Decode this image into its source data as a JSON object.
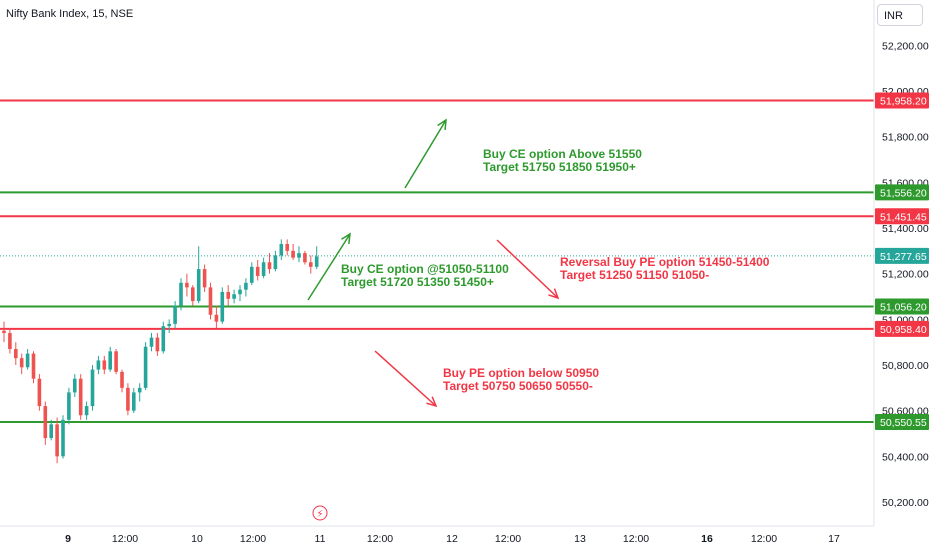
{
  "header": {
    "title": "Nifty Bank Index, 15, NSE",
    "currency": "INR"
  },
  "colors": {
    "up": "#26a69a",
    "down": "#ef5350",
    "green_level": "#2e9a2e",
    "red_level": "#f23645",
    "current": "#26a69a",
    "axis_bg": "#ffffff"
  },
  "chart_data": {
    "type": "candlestick",
    "symbol": "Nifty Bank Index",
    "interval": "15",
    "exchange": "NSE",
    "ylim": [
      50100,
      52300
    ],
    "y_ticks": [
      "52,200.00",
      "52,000.00",
      "51,800.00",
      "51,600.00",
      "51,400.00",
      "51,200.00",
      "51,000.00",
      "50,800.00",
      "50,600.00",
      "50,400.00",
      "50,200.00"
    ],
    "x_ticks": [
      {
        "label": "9",
        "bold": true
      },
      {
        "label": "12:00",
        "bold": false
      },
      {
        "label": "10",
        "bold": false
      },
      {
        "label": "12:00",
        "bold": false
      },
      {
        "label": "11",
        "bold": false
      },
      {
        "label": "12:00",
        "bold": false
      },
      {
        "label": "12",
        "bold": false
      },
      {
        "label": "12:00",
        "bold": false
      },
      {
        "label": "13",
        "bold": false
      },
      {
        "label": "12:00",
        "bold": false
      },
      {
        "label": "16",
        "bold": true
      },
      {
        "label": "12:00",
        "bold": false
      },
      {
        "label": "17",
        "bold": false
      }
    ],
    "current_price": {
      "value": 51277.65,
      "label": "51,277.65"
    },
    "levels": [
      {
        "value": 51958.2,
        "label": "51,958.20",
        "color": "red"
      },
      {
        "value": 51556.2,
        "label": "51,556.20",
        "color": "green"
      },
      {
        "value": 51451.45,
        "label": "51,451.45",
        "color": "red"
      },
      {
        "value": 51056.2,
        "label": "51,056.20",
        "color": "green"
      },
      {
        "value": 50958.4,
        "label": "50,958.40",
        "color": "red"
      },
      {
        "value": 50550.55,
        "label": "50,550.55",
        "color": "green"
      }
    ],
    "candles": [
      [
        50950,
        50990,
        50900,
        50940
      ],
      [
        50940,
        50960,
        50850,
        50870
      ],
      [
        50870,
        50900,
        50800,
        50830
      ],
      [
        50830,
        50850,
        50760,
        50790
      ],
      [
        50790,
        50870,
        50780,
        50850
      ],
      [
        50850,
        50860,
        50720,
        50740
      ],
      [
        50740,
        50760,
        50600,
        50620
      ],
      [
        50620,
        50640,
        50450,
        50480
      ],
      [
        50480,
        50560,
        50470,
        50540
      ],
      [
        50540,
        50570,
        50370,
        50400
      ],
      [
        50400,
        50580,
        50390,
        50560
      ],
      [
        50560,
        50700,
        50540,
        50680
      ],
      [
        50680,
        50760,
        50660,
        50740
      ],
      [
        50740,
        50760,
        50560,
        50580
      ],
      [
        50580,
        50640,
        50560,
        50620
      ],
      [
        50620,
        50800,
        50600,
        50780
      ],
      [
        50780,
        50840,
        50760,
        50820
      ],
      [
        50820,
        50840,
        50760,
        50780
      ],
      [
        50780,
        50880,
        50770,
        50860
      ],
      [
        50860,
        50870,
        50760,
        50770
      ],
      [
        50770,
        50780,
        50680,
        50700
      ],
      [
        50700,
        50720,
        50580,
        50600
      ],
      [
        50600,
        50700,
        50590,
        50680
      ],
      [
        50680,
        50720,
        50640,
        50700
      ],
      [
        50700,
        50900,
        50690,
        50880
      ],
      [
        50880,
        50940,
        50860,
        50920
      ],
      [
        50920,
        50940,
        50840,
        50860
      ],
      [
        50860,
        50990,
        50850,
        50970
      ],
      [
        50970,
        51000,
        50940,
        50980
      ],
      [
        50980,
        51080,
        50960,
        51060
      ],
      [
        51060,
        51180,
        51040,
        51160
      ],
      [
        51160,
        51200,
        51100,
        51140
      ],
      [
        51140,
        51150,
        51060,
        51080
      ],
      [
        51080,
        51320,
        51070,
        51220
      ],
      [
        51220,
        51240,
        51120,
        51140
      ],
      [
        51140,
        51160,
        51000,
        51020
      ],
      [
        51020,
        51060,
        50960,
        50990
      ],
      [
        50990,
        51140,
        50980,
        51120
      ],
      [
        51120,
        51150,
        51060,
        51090
      ],
      [
        51090,
        51130,
        51070,
        51110
      ],
      [
        51110,
        51150,
        51080,
        51130
      ],
      [
        51130,
        51180,
        51100,
        51160
      ],
      [
        51160,
        51250,
        51150,
        51230
      ],
      [
        51230,
        51260,
        51170,
        51190
      ],
      [
        51190,
        51270,
        51180,
        51250
      ],
      [
        51250,
        51290,
        51200,
        51220
      ],
      [
        51220,
        51300,
        51210,
        51280
      ],
      [
        51280,
        51350,
        51260,
        51330
      ],
      [
        51330,
        51350,
        51280,
        51300
      ],
      [
        51300,
        51330,
        51260,
        51270
      ],
      [
        51270,
        51320,
        51250,
        51290
      ],
      [
        51290,
        51300,
        51240,
        51250
      ],
      [
        51250,
        51280,
        51200,
        51230
      ],
      [
        51230,
        51320,
        51220,
        51275
      ]
    ],
    "annotations": [
      {
        "lines": [
          "Buy CE option Above 51550",
          "Target 51750 51850 51950+"
        ],
        "color": "green"
      },
      {
        "lines": [
          "Buy CE option @51050-51100",
          "Target 51720 51350 51450+"
        ],
        "color": "green"
      },
      {
        "lines": [
          "Reversal Buy PE option 51450-51400",
          "Target 51250 51150 51050-"
        ],
        "color": "red"
      },
      {
        "lines": [
          "Buy PE option below 50950",
          "Target 50750 50650 50550-"
        ],
        "color": "red"
      }
    ],
    "arrows": [
      {
        "color": "green",
        "direction": "up"
      },
      {
        "color": "green",
        "direction": "up"
      },
      {
        "color": "red",
        "direction": "down"
      },
      {
        "color": "red",
        "direction": "down"
      }
    ]
  }
}
